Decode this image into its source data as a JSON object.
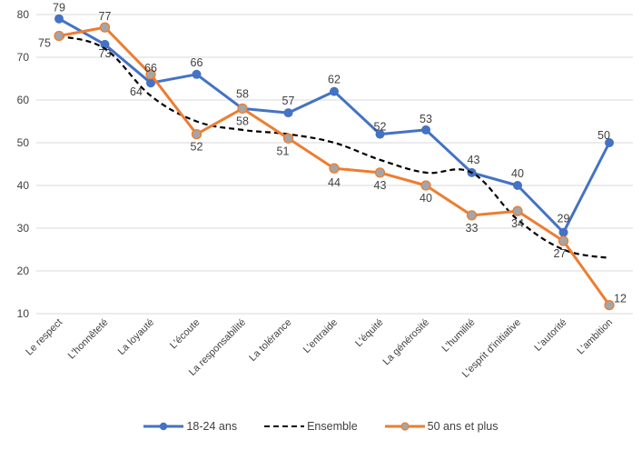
{
  "chart_data": {
    "type": "line",
    "title": "",
    "xlabel": "",
    "ylabel": "",
    "ylim": [
      10,
      80
    ],
    "yticks": [
      10,
      20,
      30,
      40,
      50,
      60,
      70,
      80
    ],
    "grid": true,
    "legend_position": "bottom",
    "categories": [
      "Le respect",
      "L'honnêteté",
      "La loyauté",
      "L'écoute",
      "La responsabilité",
      "La tolérance",
      "L'entraide",
      "L'équité",
      "La générosité",
      "L'humilité",
      "L'esprit d'initiative",
      "L'autorité",
      "L'ambition"
    ],
    "series": [
      {
        "name": "18-24 ans",
        "color": "#4472C4",
        "style": "solid",
        "marker": "circle",
        "values": [
          79,
          73,
          64,
          66,
          58,
          57,
          62,
          52,
          53,
          43,
          40,
          29,
          50
        ],
        "labels_shown": true
      },
      {
        "name": "Ensemble",
        "color": "#000000",
        "style": "dashed",
        "marker": "none",
        "values": [
          75,
          72,
          61,
          55,
          53,
          52,
          50,
          46,
          43,
          43,
          32,
          25,
          23
        ],
        "labels_shown": false
      },
      {
        "name": "50 ans et plus",
        "color": "#ED7D31",
        "style": "solid",
        "marker": "circle",
        "marker_fill": "#A5A5A5",
        "values": [
          75,
          77,
          66,
          52,
          58,
          51,
          44,
          43,
          40,
          33,
          34,
          27,
          12
        ],
        "labels_shown": true
      }
    ]
  },
  "legend": {
    "items": [
      {
        "label": "18-24 ans"
      },
      {
        "label": "Ensemble"
      },
      {
        "label": "50 ans et plus"
      }
    ]
  }
}
